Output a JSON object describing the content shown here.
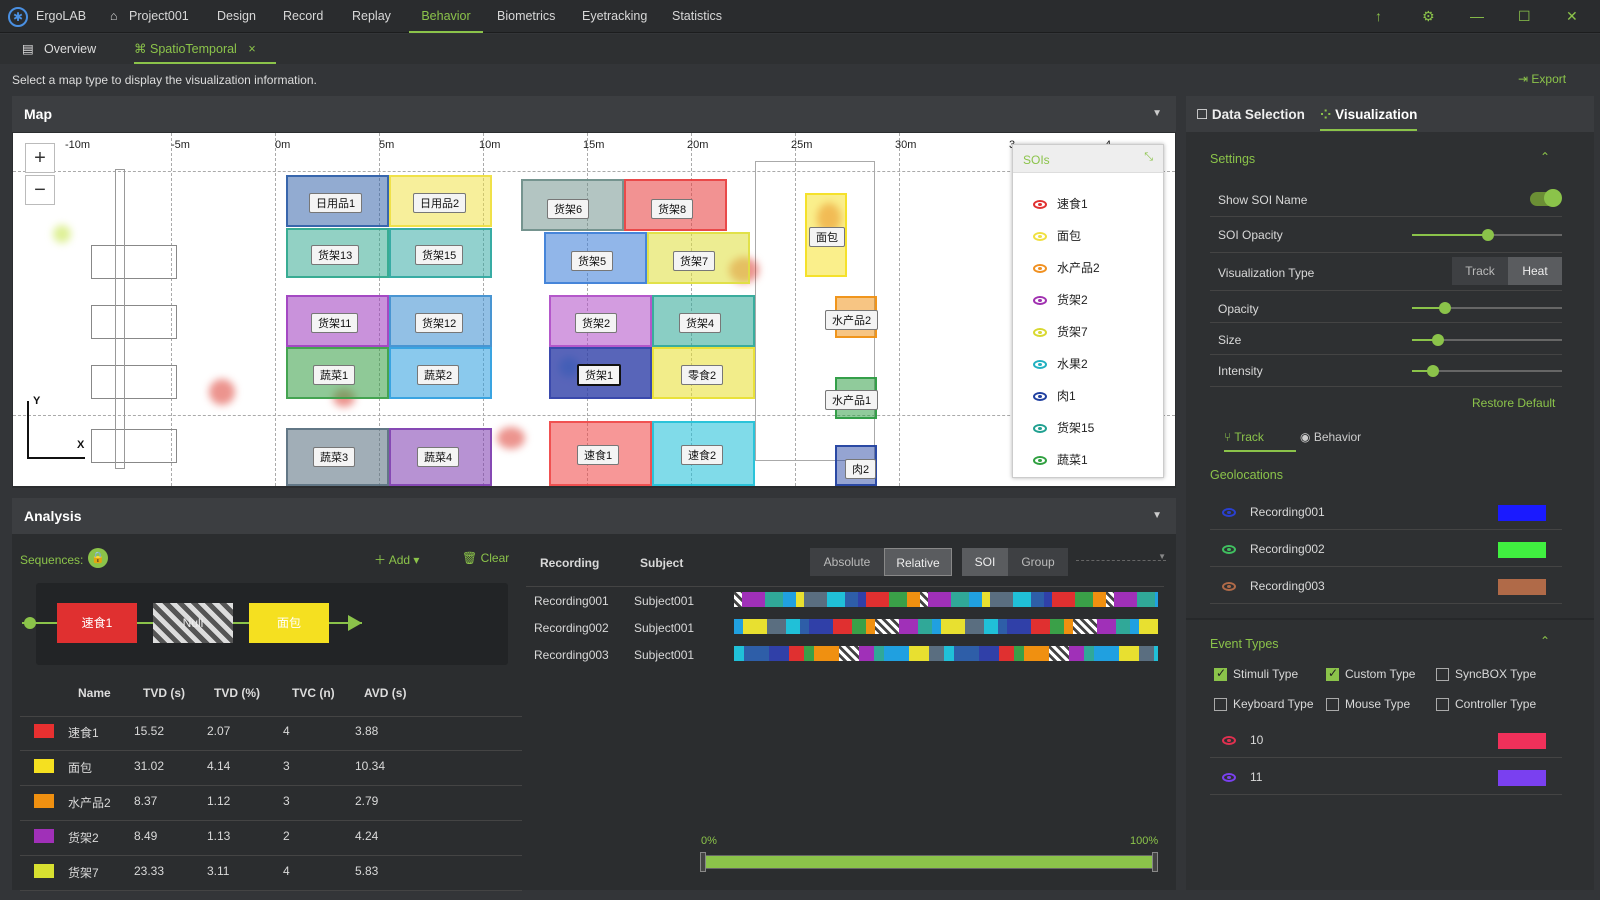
{
  "app": {
    "name": "ErgoLAB",
    "project": "Project001"
  },
  "nav": [
    "Design",
    "Record",
    "Replay",
    "Behavior",
    "Biometrics",
    "Eyetracking",
    "Statistics"
  ],
  "tabs": {
    "overview": "Overview",
    "spatiotemporal": "SpatioTemporal"
  },
  "hint": "Select a map type to display the visualization information.",
  "export": "Export",
  "map": {
    "title": "Map",
    "ruler": [
      "-10m",
      "-5m",
      "0m",
      "5m",
      "10m",
      "15m",
      "20m",
      "25m",
      "30m",
      "3",
      "4"
    ],
    "axis_y": "Y",
    "axis_x": "X",
    "sois": [
      {
        "label": "日用品1",
        "color": "#2e5ea8"
      },
      {
        "label": "日用品2",
        "color": "#f0e040"
      },
      {
        "label": "货架13",
        "color": "#2ea88e"
      },
      {
        "label": "货架15",
        "color": "#2ea8a0"
      },
      {
        "label": "货架6",
        "color": "#6e8f8a"
      },
      {
        "label": "货架8",
        "color": "#e84040"
      },
      {
        "label": "货架5",
        "color": "#3d7fd8"
      },
      {
        "label": "货架7",
        "color": "#e0e040"
      },
      {
        "label": "面包",
        "color": "#f5e020"
      },
      {
        "label": "货架11",
        "color": "#a040c0"
      },
      {
        "label": "货架12",
        "color": "#4090d0"
      },
      {
        "label": "货架2",
        "color": "#b050c8"
      },
      {
        "label": "货架4",
        "color": "#30a898"
      },
      {
        "label": "水产品2",
        "color": "#f09010"
      },
      {
        "label": "蔬菜1",
        "color": "#3aa048"
      },
      {
        "label": "蔬菜2",
        "color": "#30a0e0"
      },
      {
        "label": "货架1",
        "color": "#3040a8"
      },
      {
        "label": "零食2",
        "color": "#e8e030"
      },
      {
        "label": "水产品1",
        "color": "#2a9a40"
      },
      {
        "label": "蔬菜3",
        "color": "#5a7080"
      },
      {
        "label": "蔬菜4",
        "color": "#8040b0"
      },
      {
        "label": "速食1",
        "color": "#f04848"
      },
      {
        "label": "速食2",
        "color": "#20c0d8"
      },
      {
        "label": "肉2",
        "color": "#2040a0"
      }
    ]
  },
  "soi_legend": {
    "title": "SOIs",
    "items": [
      {
        "label": "速食1",
        "color": "#e03030"
      },
      {
        "label": "面包",
        "color": "#f0e040"
      },
      {
        "label": "水产品2",
        "color": "#f09020"
      },
      {
        "label": "货架2",
        "color": "#a030b0"
      },
      {
        "label": "货架7",
        "color": "#d8d830"
      },
      {
        "label": "水果2",
        "color": "#20b0c0"
      },
      {
        "label": "肉1",
        "color": "#2040a0"
      },
      {
        "label": "货架15",
        "color": "#20a090"
      },
      {
        "label": "蔬菜1",
        "color": "#30a040"
      }
    ]
  },
  "analysis": {
    "title": "Analysis",
    "sequences": "Sequences:",
    "add": "Add",
    "clear": "Clear",
    "seq_nodes": [
      {
        "label": "速食1",
        "color": "#e03030"
      },
      {
        "label": "Null",
        "color": "hatch"
      },
      {
        "label": "面包",
        "color": "#f5e020"
      }
    ],
    "columns": [
      "Name",
      "TVD (s)",
      "TVD (%)",
      "TVC (n)",
      "AVD (s)"
    ],
    "rows": [
      {
        "color": "#e83030",
        "name": "速食1",
        "tvd_s": "15.52",
        "tvd_p": "2.07",
        "tvc": "4",
        "avd": "3.88"
      },
      {
        "color": "#f5e020",
        "name": "面包",
        "tvd_s": "31.02",
        "tvd_p": "4.14",
        "tvc": "3",
        "avd": "10.34"
      },
      {
        "color": "#f09010",
        "name": "水产品2",
        "tvd_s": "8.37",
        "tvd_p": "1.12",
        "tvc": "3",
        "avd": "2.79"
      },
      {
        "color": "#a030b8",
        "name": "货架2",
        "tvd_s": "8.49",
        "tvd_p": "1.13",
        "tvc": "2",
        "avd": "4.24"
      },
      {
        "color": "#d8e030",
        "name": "货架7",
        "tvd_s": "23.33",
        "tvd_p": "3.11",
        "tvc": "4",
        "avd": "5.83"
      }
    ],
    "rec_header": {
      "recording": "Recording",
      "subject": "Subject"
    },
    "modes": [
      "Absolute",
      "Relative",
      "SOI",
      "Group"
    ],
    "recordings": [
      {
        "recording": "Recording001",
        "subject": "Subject001"
      },
      {
        "recording": "Recording002",
        "subject": "Subject001"
      },
      {
        "recording": "Recording003",
        "subject": "Subject001"
      }
    ],
    "range_start": "0%",
    "range_end": "100%"
  },
  "right": {
    "tab_data": "Data Selection",
    "tab_vis": "Visualization",
    "settings": "Settings",
    "show_soi_name": "Show SOI Name",
    "soi_opacity": "SOI Opacity",
    "vis_type": "Visualization Type",
    "track_btn": "Track",
    "heat_btn": "Heat",
    "opacity": "Opacity",
    "size": "Size",
    "intensity": "Intensity",
    "restore": "Restore Default",
    "sub_track": "Track",
    "sub_behavior": "Behavior",
    "geolocations": "Geolocations",
    "geo": [
      {
        "name": "Recording001",
        "color": "#1a1aff",
        "eye": "#2a40d0"
      },
      {
        "name": "Recording002",
        "color": "#40f040",
        "eye": "#40c060"
      },
      {
        "name": "Recording003",
        "color": "#b06a48",
        "eye": "#b06a48"
      }
    ],
    "event_types": "Event Types",
    "checks": [
      {
        "label": "Stimuli Type",
        "on": true
      },
      {
        "label": "Custom Type",
        "on": true
      },
      {
        "label": "SyncBOX Type",
        "on": false
      },
      {
        "label": "Keyboard Type",
        "on": false
      },
      {
        "label": "Mouse Type",
        "on": false
      },
      {
        "label": "Controller Type",
        "on": false
      }
    ],
    "events": [
      {
        "name": "10",
        "color": "#f0305a",
        "eye": "#e03050"
      },
      {
        "name": "11",
        "color": "#7a40f0",
        "eye": "#7a40f0"
      }
    ]
  }
}
